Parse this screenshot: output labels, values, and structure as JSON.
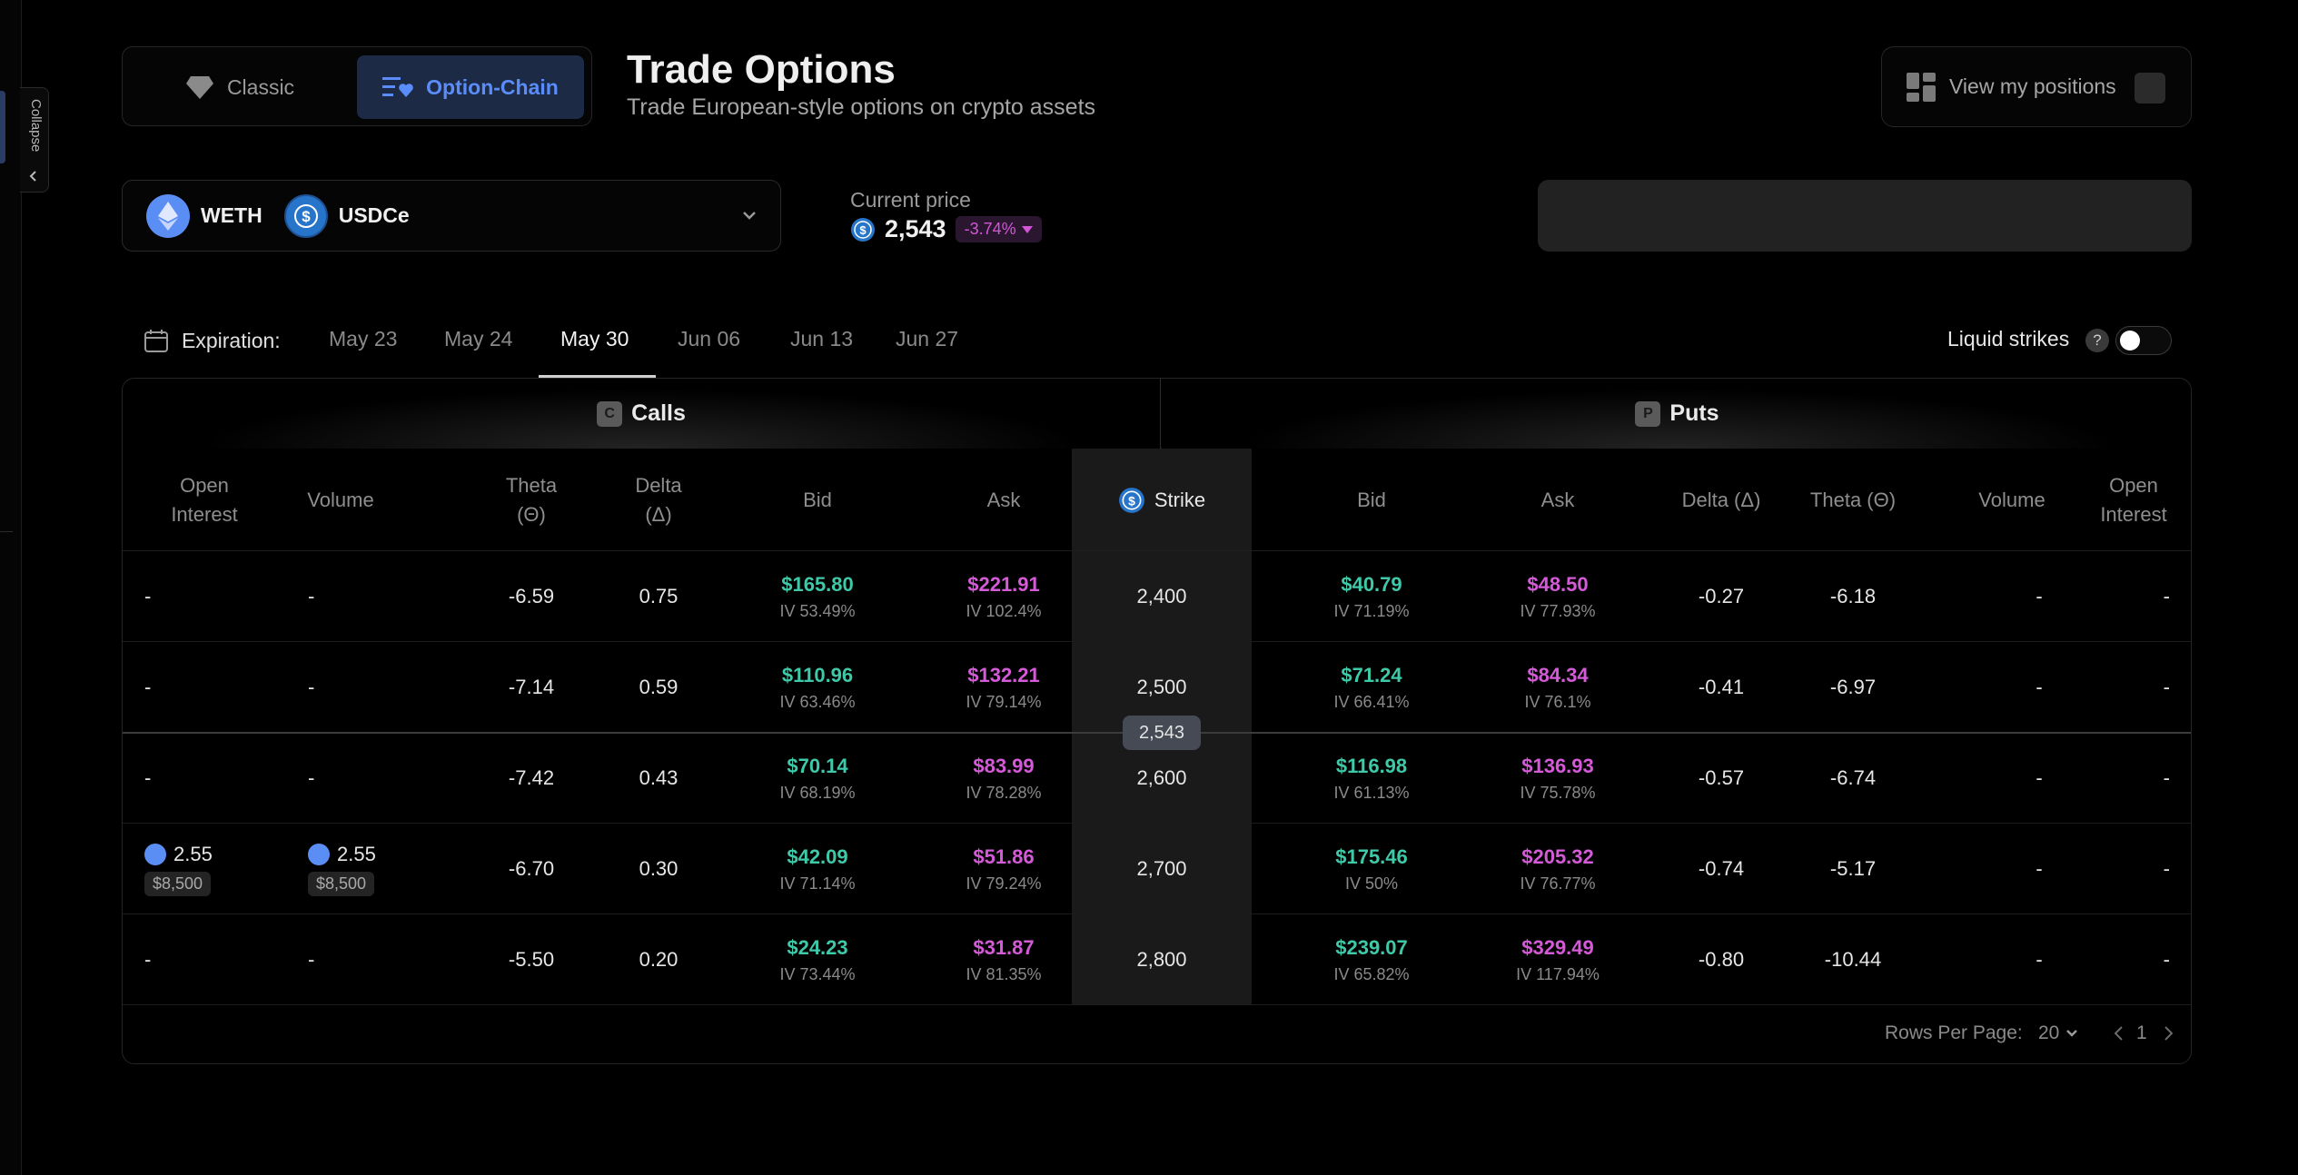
{
  "sidebar": {
    "collapse_label": "Collapse"
  },
  "mode_switch": {
    "classic_label": "Classic",
    "chain_label": "Option-Chain"
  },
  "header": {
    "title": "Trade Options",
    "subtitle": "Trade European-style options on crypto assets",
    "positions_label": "View my positions"
  },
  "pair": {
    "base": "WETH",
    "quote": "USDCe"
  },
  "current_price": {
    "label": "Current price",
    "value": "2,543",
    "change": "-3.74%"
  },
  "expiration": {
    "label": "Expiration:",
    "tabs": [
      "May 23",
      "May 24",
      "May 30",
      "Jun 06",
      "Jun 13",
      "Jun 27"
    ],
    "active": "May 30"
  },
  "liquid_strikes": {
    "label": "Liquid strikes",
    "help": "?",
    "enabled": false
  },
  "table": {
    "calls_label": "Calls",
    "calls_badge": "C",
    "puts_label": "Puts",
    "puts_badge": "P",
    "headers": {
      "open_interest": "Open Interest",
      "volume": "Volume",
      "theta": "Theta (Θ)",
      "delta": "Delta (Δ)",
      "bid": "Bid",
      "ask": "Ask",
      "strike": "Strike",
      "delta_put": "Delta (Δ)",
      "theta_put": "Theta (Θ)"
    },
    "price_marker": "2,543",
    "rows": [
      {
        "call_oi": "-",
        "call_vol": "-",
        "call_theta": "-6.59",
        "call_delta": "0.75",
        "call_bid": "$165.80",
        "call_bid_iv": "IV 53.49%",
        "call_ask": "$221.91",
        "call_ask_iv": "IV 102.4%",
        "strike": "2,400",
        "put_bid": "$40.79",
        "put_bid_iv": "IV 71.19%",
        "put_ask": "$48.50",
        "put_ask_iv": "IV 77.93%",
        "put_delta": "-0.27",
        "put_theta": "-6.18",
        "put_vol": "-",
        "put_oi": "-"
      },
      {
        "call_oi": "-",
        "call_vol": "-",
        "call_theta": "-7.14",
        "call_delta": "0.59",
        "call_bid": "$110.96",
        "call_bid_iv": "IV 63.46%",
        "call_ask": "$132.21",
        "call_ask_iv": "IV 79.14%",
        "strike": "2,500",
        "put_bid": "$71.24",
        "put_bid_iv": "IV 66.41%",
        "put_ask": "$84.34",
        "put_ask_iv": "IV 76.1%",
        "put_delta": "-0.41",
        "put_theta": "-6.97",
        "put_vol": "-",
        "put_oi": "-"
      },
      {
        "call_oi": "-",
        "call_vol": "-",
        "call_theta": "-7.42",
        "call_delta": "0.43",
        "call_bid": "$70.14",
        "call_bid_iv": "IV 68.19%",
        "call_ask": "$83.99",
        "call_ask_iv": "IV 78.28%",
        "strike": "2,600",
        "put_bid": "$116.98",
        "put_bid_iv": "IV 61.13%",
        "put_ask": "$136.93",
        "put_ask_iv": "IV 75.78%",
        "put_delta": "-0.57",
        "put_theta": "-6.74",
        "put_vol": "-",
        "put_oi": "-"
      },
      {
        "call_oi": "2.55",
        "call_oi_usd": "$8,500",
        "call_vol": "2.55",
        "call_vol_usd": "$8,500",
        "call_theta": "-6.70",
        "call_delta": "0.30",
        "call_bid": "$42.09",
        "call_bid_iv": "IV 71.14%",
        "call_ask": "$51.86",
        "call_ask_iv": "IV 79.24%",
        "strike": "2,700",
        "put_bid": "$175.46",
        "put_bid_iv": "IV 50%",
        "put_ask": "$205.32",
        "put_ask_iv": "IV 76.77%",
        "put_delta": "-0.74",
        "put_theta": "-5.17",
        "put_vol": "-",
        "put_oi": "-"
      },
      {
        "call_oi": "-",
        "call_vol": "-",
        "call_theta": "-5.50",
        "call_delta": "0.20",
        "call_bid": "$24.23",
        "call_bid_iv": "IV 73.44%",
        "call_ask": "$31.87",
        "call_ask_iv": "IV 81.35%",
        "strike": "2,800",
        "put_bid": "$239.07",
        "put_bid_iv": "IV 65.82%",
        "put_ask": "$329.49",
        "put_ask_iv": "IV 117.94%",
        "put_delta": "-0.80",
        "put_theta": "-10.44",
        "put_vol": "-",
        "put_oi": "-"
      }
    ]
  },
  "pagination": {
    "rows_label": "Rows Per Page:",
    "rows_value": "20",
    "page": "1"
  },
  "colors": {
    "bid": "#3ec9a9",
    "ask": "#d45ad8",
    "accent": "#5b8dfa",
    "negative": "#d257d8"
  }
}
